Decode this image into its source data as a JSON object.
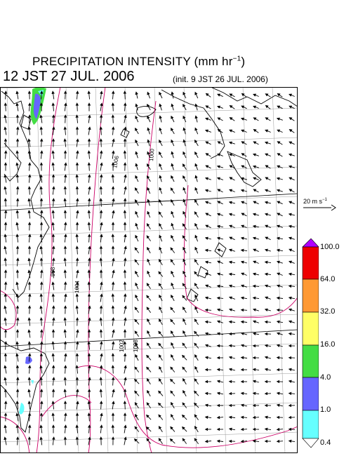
{
  "header": {
    "title_main": "PRECIPITATION INTENSITY (mm hr",
    "title_exp": "−1",
    "title_close": ")",
    "valid_time": "12 JST 27 JUL. 2006",
    "init_time": "(init. 9 JST 26 JUL. 2006)"
  },
  "reference_vector": {
    "label": "20 m s",
    "exp": "−1"
  },
  "contour_labels": [
    "998",
    "1000",
    "1004",
    "1006",
    "1002",
    "1008",
    "1004",
    "1002"
  ],
  "colorbar": {
    "levels": [
      "100.0",
      "64.0",
      "32.0",
      "16.0",
      "4.0",
      "1.0",
      "0.4"
    ],
    "colors": {
      "over": "#b000ff",
      "r64_100": "#ee0000",
      "r32_64": "#ff9933",
      "r16_32": "#ffff66",
      "r4_16": "#44dd44",
      "r1_4": "#6666ff",
      "r04_1": "#66ffff",
      "under": "#ffffff"
    }
  },
  "colors": {
    "coast": "#000000",
    "grid": "#999999",
    "isobar": "#cc0066",
    "arrows": "#000000"
  }
}
